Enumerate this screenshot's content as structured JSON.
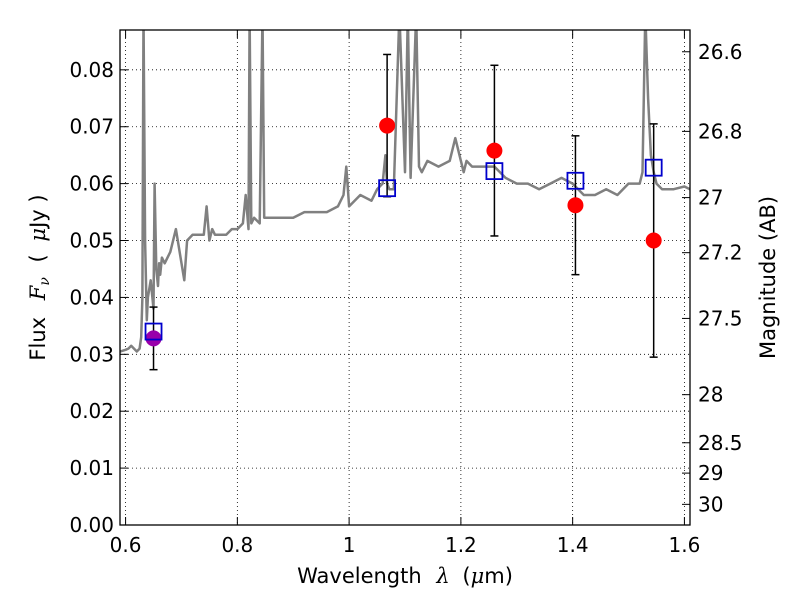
{
  "chart_data": {
    "type": "scatter",
    "xlabel": {
      "pre": "Wavelength",
      "sym": "λ",
      "open": "(",
      "unit_sym": "μ",
      "unit": "m)"
    },
    "ylabel": {
      "pre": "Flux",
      "sym": "F",
      "sub": "ν",
      "open": "(",
      "unit_sym": "μ",
      "unit": "Jy )"
    },
    "y2label": "Magnitude (AB)",
    "xlim": [
      0.59,
      1.61
    ],
    "ylim": [
      0.0,
      0.087
    ],
    "grid": true,
    "x_ticks": [
      0.6,
      0.8,
      1.0,
      1.2,
      1.4,
      1.6
    ],
    "x_tick_labels": [
      "0.6",
      "0.8",
      "1",
      "1.2",
      "1.4",
      "1.6"
    ],
    "y_ticks": [
      0.0,
      0.01,
      0.02,
      0.03,
      0.04,
      0.05,
      0.06,
      0.07,
      0.08
    ],
    "y_tick_labels": [
      "0.00",
      "0.01",
      "0.02",
      "0.03",
      "0.04",
      "0.05",
      "0.06",
      "0.07",
      "0.08"
    ],
    "mag_ticks": [
      26.6,
      26.8,
      27.0,
      27.2,
      27.5,
      28.0,
      28.5,
      29.0,
      30.0
    ],
    "mag_tick_labels": [
      "26.6",
      "26.8",
      "27",
      "27.2",
      "27.5",
      "28",
      "28.5",
      "29",
      "30"
    ],
    "spectrum": {
      "color": "#808080",
      "x": [
        0.59,
        0.6,
        0.605,
        0.61,
        0.615,
        0.62,
        0.625,
        0.628,
        0.63,
        0.632,
        0.635,
        0.638,
        0.64,
        0.645,
        0.65,
        0.652,
        0.655,
        0.658,
        0.66,
        0.662,
        0.665,
        0.67,
        0.68,
        0.69,
        0.7,
        0.705,
        0.71,
        0.72,
        0.73,
        0.74,
        0.745,
        0.75,
        0.755,
        0.76,
        0.77,
        0.78,
        0.79,
        0.8,
        0.81,
        0.815,
        0.82,
        0.822,
        0.825,
        0.83,
        0.84,
        0.845,
        0.848,
        0.852,
        0.855,
        0.86,
        0.87,
        0.88,
        0.9,
        0.92,
        0.94,
        0.96,
        0.98,
        0.99,
        0.995,
        1.0,
        1.02,
        1.04,
        1.05,
        1.06,
        1.065,
        1.068,
        1.072,
        1.08,
        1.09,
        1.1,
        1.105,
        1.11,
        1.12,
        1.125,
        1.13,
        1.14,
        1.16,
        1.18,
        1.19,
        1.2,
        1.205,
        1.21,
        1.22,
        1.24,
        1.26,
        1.28,
        1.3,
        1.32,
        1.34,
        1.36,
        1.38,
        1.4,
        1.42,
        1.44,
        1.46,
        1.48,
        1.5,
        1.52,
        1.525,
        1.53,
        1.535,
        1.54,
        1.545,
        1.55,
        1.56,
        1.58,
        1.6,
        1.61
      ],
      "y": [
        0.0305,
        0.0308,
        0.031,
        0.0315,
        0.031,
        0.0305,
        0.031,
        0.033,
        0.04,
        0.09,
        0.05,
        0.036,
        0.04,
        0.043,
        0.038,
        0.06,
        0.045,
        0.042,
        0.046,
        0.044,
        0.047,
        0.046,
        0.048,
        0.052,
        0.046,
        0.043,
        0.05,
        0.051,
        0.051,
        0.051,
        0.056,
        0.05,
        0.052,
        0.051,
        0.051,
        0.051,
        0.052,
        0.052,
        0.053,
        0.058,
        0.052,
        0.09,
        0.053,
        0.054,
        0.053,
        0.09,
        0.054,
        0.054,
        0.054,
        0.054,
        0.054,
        0.054,
        0.054,
        0.055,
        0.055,
        0.055,
        0.056,
        0.058,
        0.063,
        0.056,
        0.058,
        0.057,
        0.059,
        0.06,
        0.065,
        0.06,
        0.059,
        0.059,
        0.09,
        0.062,
        0.09,
        0.061,
        0.09,
        0.063,
        0.062,
        0.064,
        0.063,
        0.064,
        0.068,
        0.064,
        0.062,
        0.064,
        0.063,
        0.063,
        0.063,
        0.061,
        0.06,
        0.06,
        0.059,
        0.06,
        0.061,
        0.06,
        0.058,
        0.058,
        0.059,
        0.058,
        0.06,
        0.06,
        0.062,
        0.09,
        0.075,
        0.065,
        0.062,
        0.06,
        0.059,
        0.059,
        0.0595,
        0.059
      ]
    },
    "photometry": [
      {
        "x": 1.068,
        "y": 0.0702,
        "yerr": 0.0125,
        "color": "#ff0000"
      },
      {
        "x": 1.26,
        "y": 0.0658,
        "yerr": 0.015,
        "color": "#ff0000"
      },
      {
        "x": 1.405,
        "y": 0.0562,
        "yerr": 0.0122,
        "color": "#ff0000"
      },
      {
        "x": 1.545,
        "y": 0.05,
        "yerr": 0.0205,
        "color": "#ff0000"
      },
      {
        "x": 0.65,
        "y": 0.0328,
        "yerr": 0.0055,
        "color": "#9900aa"
      }
    ],
    "model_points": {
      "color": "#0000cc",
      "x": [
        0.65,
        1.068,
        1.26,
        1.405,
        1.545
      ],
      "y": [
        0.034,
        0.0592,
        0.0622,
        0.0605,
        0.0628
      ]
    }
  }
}
